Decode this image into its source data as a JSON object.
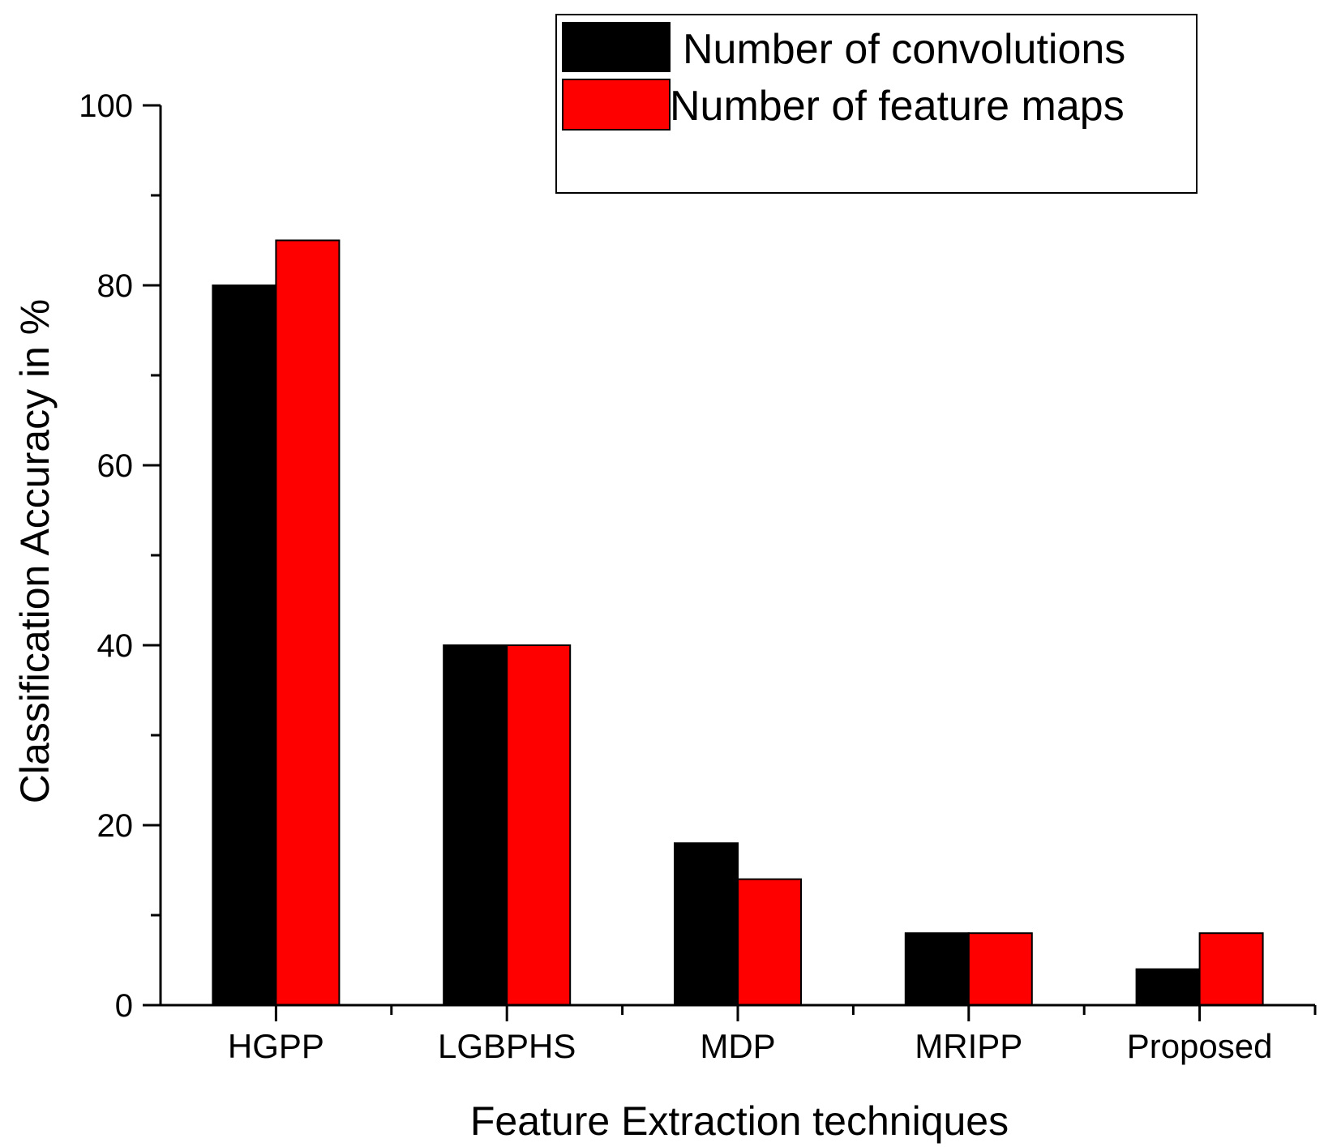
{
  "chart_data": {
    "type": "bar",
    "title": "",
    "xlabel": "Feature Extraction techniques",
    "ylabel": "Classification Accuracy in %",
    "categories": [
      "HGPP",
      "LGBPHS",
      "MDP",
      "MRIPP",
      "Proposed"
    ],
    "series": [
      {
        "name": "Number of convolutions",
        "color": "#000000",
        "values": [
          80,
          40,
          18,
          8,
          4
        ]
      },
      {
        "name": "Number of feature maps",
        "color": "#ff0000",
        "values": [
          85,
          40,
          14,
          8,
          8
        ]
      }
    ],
    "ylim": [
      0,
      100
    ],
    "yticks": [
      0,
      20,
      40,
      60,
      80,
      100
    ],
    "grid": false,
    "legend_position": "top-right"
  }
}
